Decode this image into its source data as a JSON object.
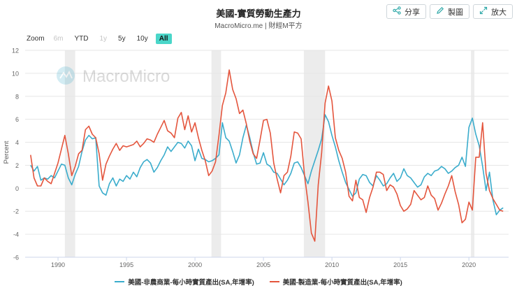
{
  "header": {
    "title": "美國-實質勞動生產力",
    "subtitle": "MacroMicro.me | 財經M平方",
    "share_label": "分享",
    "draw_label": "製圖",
    "expand_label": "放大"
  },
  "zoom": {
    "label": "Zoom",
    "options": [
      {
        "label": "6m",
        "state": "disabled"
      },
      {
        "label": "YTD",
        "state": "normal"
      },
      {
        "label": "1y",
        "state": "disabled"
      },
      {
        "label": "5y",
        "state": "normal"
      },
      {
        "label": "10y",
        "state": "normal"
      },
      {
        "label": "All",
        "state": "active"
      }
    ]
  },
  "watermark": "MacroMicro",
  "chart_data": {
    "type": "line",
    "ylabel": "Percent",
    "ylim": [
      -6,
      12
    ],
    "yticks": [
      -6,
      -4,
      -2,
      0,
      2,
      4,
      6,
      8,
      10,
      12
    ],
    "xlim": [
      1987.6,
      2022.9
    ],
    "xticks": [
      1990,
      1995,
      2000,
      2005,
      2010,
      2015,
      2020
    ],
    "grid": true,
    "recession_bands": [
      [
        1990.5,
        1991.25
      ],
      [
        2001.2,
        2001.9
      ],
      [
        2007.95,
        2009.5
      ],
      [
        2020.15,
        2020.4
      ]
    ],
    "colors": {
      "nonfarm": "#3aaccc",
      "manufacturing": "#e4553d"
    },
    "series": [
      {
        "name": "美國-非農商業-每小時實質產出(SA,年增率)",
        "color": "#3aaccc",
        "points": [
          [
            1988.0,
            2.0
          ],
          [
            1988.25,
            1.5
          ],
          [
            1988.5,
            1.9
          ],
          [
            1988.75,
            0.7
          ],
          [
            1989.0,
            0.9
          ],
          [
            1989.25,
            0.8
          ],
          [
            1989.5,
            1.1
          ],
          [
            1989.75,
            0.9
          ],
          [
            1990.0,
            1.5
          ],
          [
            1990.25,
            2.1
          ],
          [
            1990.5,
            2.0
          ],
          [
            1990.75,
            0.9
          ],
          [
            1991.0,
            0.3
          ],
          [
            1991.25,
            1.2
          ],
          [
            1991.5,
            1.9
          ],
          [
            1991.75,
            3.2
          ],
          [
            1992.0,
            4.2
          ],
          [
            1992.25,
            4.6
          ],
          [
            1992.5,
            4.3
          ],
          [
            1992.75,
            4.4
          ],
          [
            1993.0,
            0.2
          ],
          [
            1993.25,
            -0.4
          ],
          [
            1993.5,
            -0.6
          ],
          [
            1993.75,
            0.4
          ],
          [
            1994.0,
            0.9
          ],
          [
            1994.25,
            0.2
          ],
          [
            1994.5,
            0.8
          ],
          [
            1994.75,
            0.6
          ],
          [
            1995.0,
            1.1
          ],
          [
            1995.25,
            0.8
          ],
          [
            1995.5,
            1.4
          ],
          [
            1995.75,
            1.0
          ],
          [
            1996.0,
            1.8
          ],
          [
            1996.25,
            2.3
          ],
          [
            1996.5,
            2.5
          ],
          [
            1996.75,
            2.2
          ],
          [
            1997.0,
            1.4
          ],
          [
            1997.25,
            1.8
          ],
          [
            1997.5,
            2.4
          ],
          [
            1997.75,
            2.9
          ],
          [
            1998.0,
            3.6
          ],
          [
            1998.25,
            3.2
          ],
          [
            1998.5,
            3.6
          ],
          [
            1998.75,
            4.0
          ],
          [
            1999.0,
            3.9
          ],
          [
            1999.25,
            3.5
          ],
          [
            1999.5,
            4.1
          ],
          [
            1999.75,
            3.7
          ],
          [
            2000.0,
            2.4
          ],
          [
            2000.25,
            3.4
          ],
          [
            2000.5,
            2.6
          ],
          [
            2000.75,
            2.5
          ],
          [
            2001.0,
            2.3
          ],
          [
            2001.25,
            2.4
          ],
          [
            2001.5,
            2.6
          ],
          [
            2001.75,
            2.9
          ],
          [
            2002.0,
            5.7
          ],
          [
            2002.25,
            4.4
          ],
          [
            2002.5,
            4.1
          ],
          [
            2002.75,
            3.2
          ],
          [
            2003.0,
            2.2
          ],
          [
            2003.25,
            2.9
          ],
          [
            2003.5,
            4.4
          ],
          [
            2003.75,
            5.5
          ],
          [
            2004.0,
            4.4
          ],
          [
            2004.25,
            3.1
          ],
          [
            2004.5,
            2.1
          ],
          [
            2004.75,
            2.2
          ],
          [
            2005.0,
            3.1
          ],
          [
            2005.25,
            2.1
          ],
          [
            2005.5,
            1.9
          ],
          [
            2005.75,
            1.4
          ],
          [
            2006.0,
            1.3
          ],
          [
            2006.25,
            0.8
          ],
          [
            2006.5,
            0.3
          ],
          [
            2006.75,
            0.7
          ],
          [
            2007.0,
            1.3
          ],
          [
            2007.25,
            2.2
          ],
          [
            2007.5,
            2.3
          ],
          [
            2007.75,
            1.8
          ],
          [
            2008.0,
            1.1
          ],
          [
            2008.25,
            0.4
          ],
          [
            2008.5,
            1.5
          ],
          [
            2008.75,
            2.4
          ],
          [
            2009.0,
            3.3
          ],
          [
            2009.25,
            4.3
          ],
          [
            2009.5,
            6.4
          ],
          [
            2009.75,
            5.8
          ],
          [
            2010.0,
            4.6
          ],
          [
            2010.25,
            3.6
          ],
          [
            2010.5,
            2.4
          ],
          [
            2010.75,
            1.4
          ],
          [
            2011.0,
            0.5
          ],
          [
            2011.25,
            -0.1
          ],
          [
            2011.5,
            -0.7
          ],
          [
            2011.75,
            -0.4
          ],
          [
            2012.0,
            0.8
          ],
          [
            2012.25,
            1.2
          ],
          [
            2012.5,
            1.1
          ],
          [
            2012.75,
            0.5
          ],
          [
            2013.0,
            0.2
          ],
          [
            2013.25,
            1.1
          ],
          [
            2013.5,
            0.7
          ],
          [
            2013.75,
            0.2
          ],
          [
            2014.0,
            0.4
          ],
          [
            2014.25,
            0.9
          ],
          [
            2014.5,
            1.3
          ],
          [
            2014.75,
            0.6
          ],
          [
            2015.0,
            0.9
          ],
          [
            2015.25,
            1.7
          ],
          [
            2015.5,
            1.1
          ],
          [
            2015.75,
            0.9
          ],
          [
            2016.0,
            0.5
          ],
          [
            2016.25,
            0.1
          ],
          [
            2016.5,
            0.3
          ],
          [
            2016.75,
            1.0
          ],
          [
            2017.0,
            1.3
          ],
          [
            2017.25,
            1.1
          ],
          [
            2017.5,
            1.5
          ],
          [
            2017.75,
            1.6
          ],
          [
            2018.0,
            1.9
          ],
          [
            2018.25,
            1.7
          ],
          [
            2018.5,
            1.3
          ],
          [
            2018.75,
            1.5
          ],
          [
            2019.0,
            1.8
          ],
          [
            2019.25,
            2.0
          ],
          [
            2019.5,
            2.7
          ],
          [
            2019.75,
            1.9
          ],
          [
            2020.0,
            5.3
          ],
          [
            2020.25,
            6.1
          ],
          [
            2020.5,
            4.7
          ],
          [
            2020.75,
            3.7
          ],
          [
            2021.0,
            1.9
          ],
          [
            2021.25,
            -0.2
          ],
          [
            2021.5,
            1.4
          ],
          [
            2021.75,
            -1.0
          ],
          [
            2022.0,
            -2.3
          ],
          [
            2022.25,
            -1.9
          ],
          [
            2022.5,
            -1.7
          ]
        ]
      },
      {
        "name": "美國-製造業-每小時實質產出(SA,年增率)",
        "color": "#e4553d",
        "points": [
          [
            1988.0,
            2.9
          ],
          [
            1988.25,
            0.9
          ],
          [
            1988.5,
            0.2
          ],
          [
            1988.75,
            0.2
          ],
          [
            1989.0,
            0.9
          ],
          [
            1989.25,
            0.6
          ],
          [
            1989.5,
            0.4
          ],
          [
            1989.75,
            1.3
          ],
          [
            1990.0,
            2.2
          ],
          [
            1990.25,
            3.4
          ],
          [
            1990.5,
            4.6
          ],
          [
            1990.75,
            3.0
          ],
          [
            1991.0,
            1.1
          ],
          [
            1991.25,
            1.9
          ],
          [
            1991.5,
            3.0
          ],
          [
            1991.75,
            3.3
          ],
          [
            1992.0,
            5.1
          ],
          [
            1992.25,
            5.4
          ],
          [
            1992.5,
            4.7
          ],
          [
            1992.75,
            4.4
          ],
          [
            1993.0,
            3.0
          ],
          [
            1993.25,
            0.7
          ],
          [
            1993.5,
            2.1
          ],
          [
            1993.75,
            2.8
          ],
          [
            1994.0,
            3.4
          ],
          [
            1994.25,
            3.9
          ],
          [
            1994.5,
            3.3
          ],
          [
            1994.75,
            3.7
          ],
          [
            1995.0,
            3.6
          ],
          [
            1995.25,
            3.7
          ],
          [
            1995.5,
            3.8
          ],
          [
            1995.75,
            4.1
          ],
          [
            1996.0,
            3.6
          ],
          [
            1996.25,
            3.9
          ],
          [
            1996.5,
            4.3
          ],
          [
            1996.75,
            4.2
          ],
          [
            1997.0,
            4.0
          ],
          [
            1997.25,
            4.7
          ],
          [
            1997.5,
            5.3
          ],
          [
            1997.75,
            5.9
          ],
          [
            1998.0,
            5.0
          ],
          [
            1998.25,
            4.8
          ],
          [
            1998.5,
            4.4
          ],
          [
            1998.75,
            6.1
          ],
          [
            1999.0,
            6.6
          ],
          [
            1999.25,
            5.1
          ],
          [
            1999.5,
            6.3
          ],
          [
            1999.75,
            4.9
          ],
          [
            2000.0,
            5.7
          ],
          [
            2000.25,
            4.4
          ],
          [
            2000.5,
            3.3
          ],
          [
            2000.75,
            2.4
          ],
          [
            2001.0,
            1.1
          ],
          [
            2001.25,
            1.5
          ],
          [
            2001.5,
            2.3
          ],
          [
            2001.75,
            4.6
          ],
          [
            2002.0,
            7.2
          ],
          [
            2002.25,
            8.3
          ],
          [
            2002.5,
            10.3
          ],
          [
            2002.75,
            8.6
          ],
          [
            2003.0,
            7.8
          ],
          [
            2003.25,
            6.5
          ],
          [
            2003.5,
            6.8
          ],
          [
            2003.75,
            5.6
          ],
          [
            2004.0,
            4.1
          ],
          [
            2004.25,
            3.0
          ],
          [
            2004.5,
            2.6
          ],
          [
            2004.75,
            4.2
          ],
          [
            2005.0,
            5.9
          ],
          [
            2005.25,
            6.0
          ],
          [
            2005.5,
            4.8
          ],
          [
            2005.75,
            2.2
          ],
          [
            2006.0,
            0.8
          ],
          [
            2006.25,
            -0.4
          ],
          [
            2006.5,
            1.1
          ],
          [
            2006.75,
            1.4
          ],
          [
            2007.0,
            2.8
          ],
          [
            2007.25,
            4.9
          ],
          [
            2007.5,
            4.8
          ],
          [
            2007.75,
            4.3
          ],
          [
            2008.0,
            1.1
          ],
          [
            2008.25,
            -1.2
          ],
          [
            2008.5,
            -3.9
          ],
          [
            2008.75,
            -4.6
          ],
          [
            2009.0,
            0.3
          ],
          [
            2009.25,
            3.1
          ],
          [
            2009.5,
            7.4
          ],
          [
            2009.75,
            8.9
          ],
          [
            2010.0,
            7.6
          ],
          [
            2010.25,
            4.4
          ],
          [
            2010.5,
            3.3
          ],
          [
            2010.75,
            2.6
          ],
          [
            2011.0,
            1.4
          ],
          [
            2011.25,
            -0.7
          ],
          [
            2011.5,
            -1.1
          ],
          [
            2011.75,
            0.7
          ],
          [
            2012.0,
            -0.8
          ],
          [
            2012.25,
            -1.0
          ],
          [
            2012.5,
            -2.1
          ],
          [
            2012.75,
            -0.8
          ],
          [
            2013.0,
            0.1
          ],
          [
            2013.25,
            1.4
          ],
          [
            2013.5,
            1.4
          ],
          [
            2013.75,
            1.2
          ],
          [
            2014.0,
            -0.2
          ],
          [
            2014.25,
            0.3
          ],
          [
            2014.5,
            0.1
          ],
          [
            2014.75,
            -0.5
          ],
          [
            2015.0,
            -1.5
          ],
          [
            2015.25,
            -2.0
          ],
          [
            2015.5,
            -1.8
          ],
          [
            2015.75,
            -1.4
          ],
          [
            2016.0,
            -0.2
          ],
          [
            2016.25,
            -0.6
          ],
          [
            2016.5,
            -1.0
          ],
          [
            2016.75,
            -0.8
          ],
          [
            2017.0,
            0.2
          ],
          [
            2017.25,
            -0.6
          ],
          [
            2017.5,
            -0.9
          ],
          [
            2017.75,
            -1.9
          ],
          [
            2018.0,
            -1.3
          ],
          [
            2018.25,
            -0.5
          ],
          [
            2018.5,
            0.2
          ],
          [
            2018.75,
            1.1
          ],
          [
            2019.0,
            -0.3
          ],
          [
            2019.25,
            -1.4
          ],
          [
            2019.5,
            -3.0
          ],
          [
            2019.75,
            -2.7
          ],
          [
            2020.0,
            -1.2
          ],
          [
            2020.25,
            -1.9
          ],
          [
            2020.5,
            2.7
          ],
          [
            2020.75,
            2.7
          ],
          [
            2021.0,
            5.7
          ],
          [
            2021.25,
            1.3
          ],
          [
            2021.5,
            -0.2
          ],
          [
            2021.75,
            -0.9
          ],
          [
            2022.0,
            -1.4
          ],
          [
            2022.25,
            -1.9
          ],
          [
            2022.5,
            -2.0
          ]
        ]
      }
    ]
  }
}
